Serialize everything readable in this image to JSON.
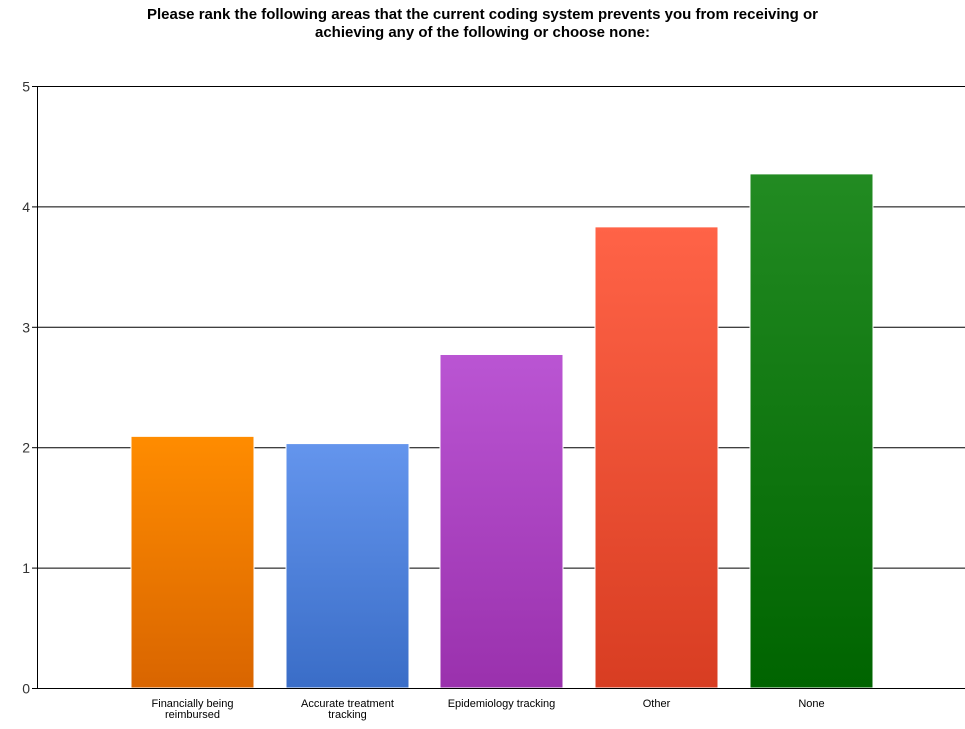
{
  "chart_data": {
    "type": "bar",
    "title": [
      "Please rank the following areas that the current coding system prevents you from receiving or",
      "achieving any of the following or choose none:"
    ],
    "xlabel": "",
    "ylabel": "",
    "ylim": [
      0,
      5
    ],
    "yticks": [
      0,
      1,
      2,
      3,
      4,
      5
    ],
    "grid": true,
    "legend": "none",
    "categories": [
      [
        "Financially being",
        "reimbursed"
      ],
      [
        "Accurate treatment",
        "tracking"
      ],
      [
        "Epidemiology tracking"
      ],
      [
        "Other"
      ],
      [
        "None"
      ]
    ],
    "values": [
      2.09,
      2.03,
      2.77,
      3.83,
      4.27
    ],
    "colors": [
      [
        "#ff8c00",
        "#d96500"
      ],
      [
        "#6495ed",
        "#3a6dc7"
      ],
      [
        "#ba55d3",
        "#9a31ad"
      ],
      [
        "#ff6347",
        "#d83d22"
      ],
      [
        "#228b22",
        "#006400"
      ]
    ]
  }
}
